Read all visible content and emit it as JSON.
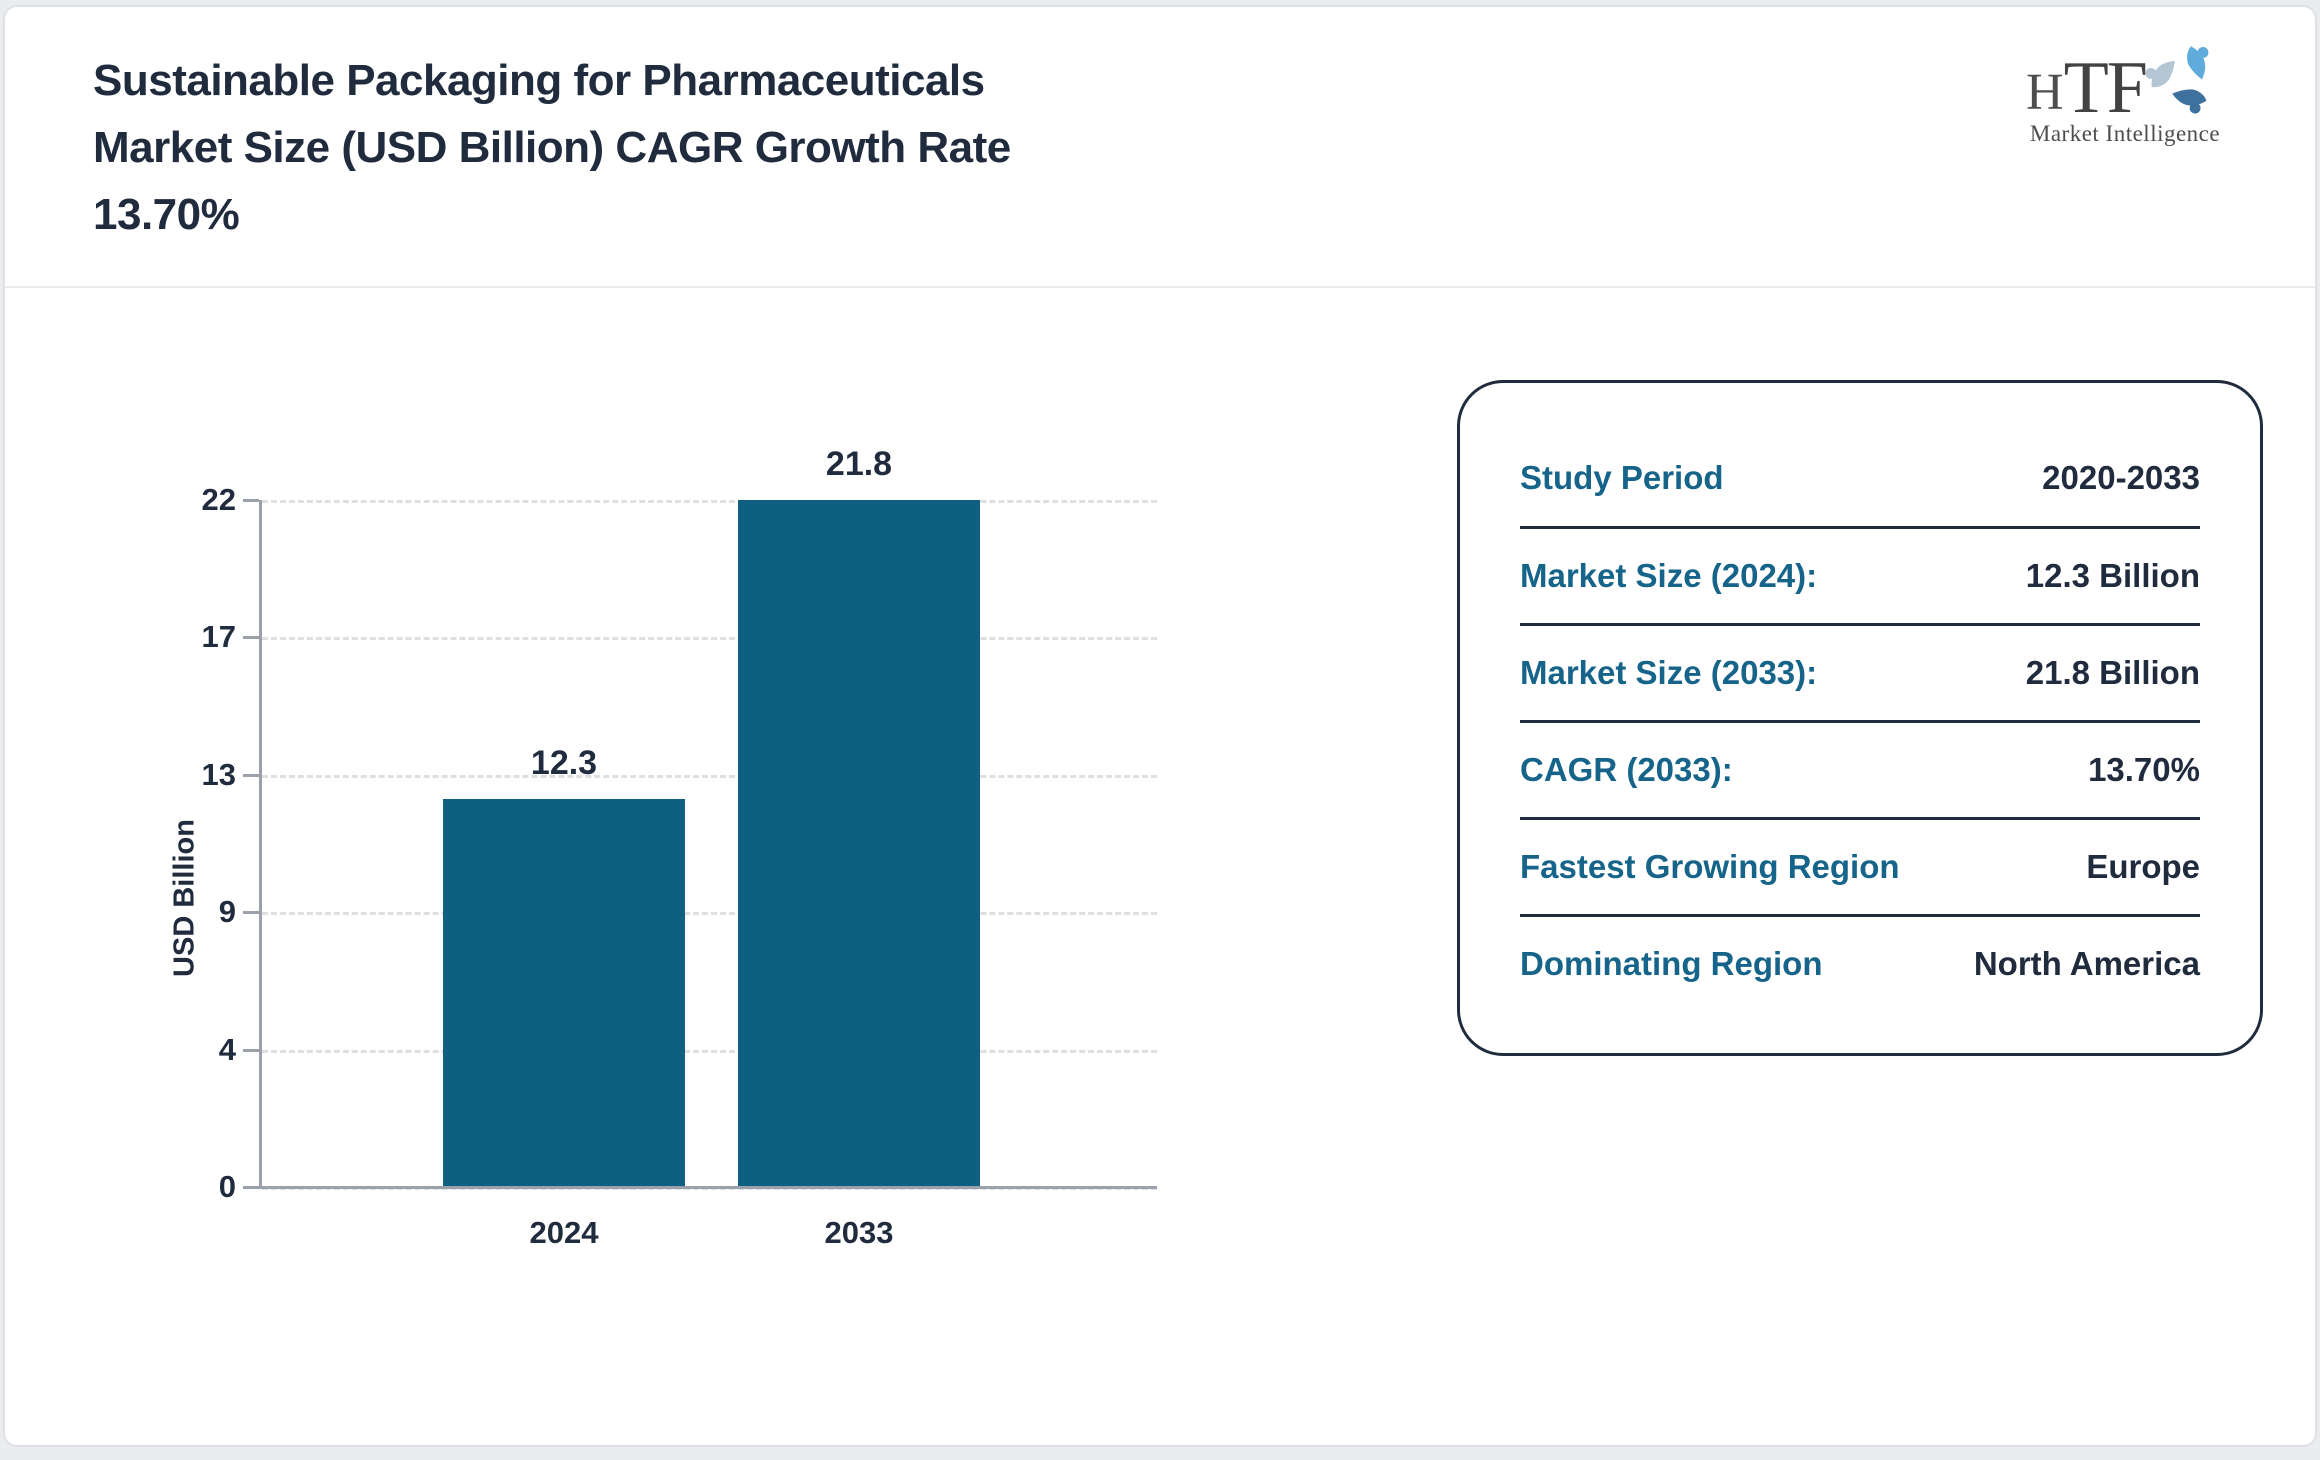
{
  "header": {
    "title_lines": [
      "Sustainable Packaging for Pharmaceuticals",
      "Market Size (USD Billion) CAGR Growth Rate",
      "13.70%"
    ]
  },
  "logo": {
    "initial_h": "H",
    "initials_tf": "TF",
    "tagline": "Market Intelligence"
  },
  "chart_data": {
    "type": "bar",
    "title": "Sustainable Packaging for Pharmaceuticals Market Size (USD Billion) CAGR Growth Rate 13.70%",
    "categories": [
      "2024",
      "2033"
    ],
    "values": [
      12.3,
      21.8
    ],
    "xlabel": "",
    "ylabel": "USD Billion",
    "ylim": [
      0,
      21.8
    ],
    "ytick_labels_bottom_to_top": [
      "0",
      "4",
      "9",
      "13",
      "17",
      "22"
    ],
    "grid": "horizontal dashed",
    "legend": "none",
    "bar_color": "#0f5f80"
  },
  "chart": {
    "ylabel": "USD Billion",
    "yticks_top_to_bottom": [
      "22",
      "17",
      "13",
      "9",
      "4",
      "0"
    ],
    "x_labels": [
      "2024",
      "2033"
    ]
  },
  "info_box": {
    "rows": [
      {
        "label": "Study Period",
        "value": "2020-2033"
      },
      {
        "label": "Market Size (2024):",
        "value": "12.3 Billion"
      },
      {
        "label": "Market Size (2033):",
        "value": "21.8 Billion"
      },
      {
        "label": "CAGR (2033):",
        "value": "13.70%"
      },
      {
        "label": "Fastest Growing Region",
        "value": "Europe"
      },
      {
        "label": "Dominating Region",
        "value": "North America"
      }
    ]
  },
  "colors": {
    "bar": "#0f5f80",
    "label_teal": "#16648a",
    "text_navy": "#202c3e",
    "axis_gray": "#9aa1ab",
    "gridline": "#dddfe1"
  }
}
